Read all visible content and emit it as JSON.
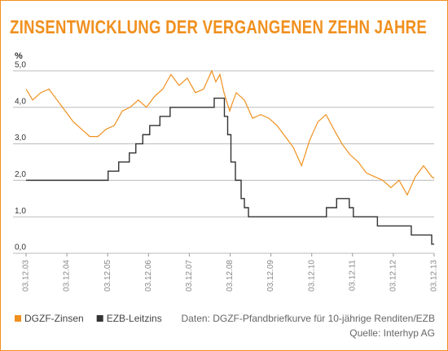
{
  "chart_data": {
    "type": "line",
    "title": "ZINSENTWICKLUNG DER VERGANGENEN ZEHN JAHRE",
    "y_label": "%",
    "source": [
      "Daten: DGZF-Pfandbriefkurve für 10-jährige Renditen/EZB",
      "Quelle: Interhyp AG"
    ],
    "xlim": [
      2003.92,
      2013.92
    ],
    "xticks": [
      {
        "value": 2003.92,
        "label": "03.12.03"
      },
      {
        "value": 2004.92,
        "label": "03.12.04"
      },
      {
        "value": 2005.92,
        "label": "03.12.05"
      },
      {
        "value": 2006.92,
        "label": "03.12.06"
      },
      {
        "value": 2007.92,
        "label": "03.12.07"
      },
      {
        "value": 2008.92,
        "label": "03.12.08"
      },
      {
        "value": 2009.92,
        "label": "03.12.09"
      },
      {
        "value": 2010.92,
        "label": "03.12.10"
      },
      {
        "value": 2011.92,
        "label": "03.12.11"
      },
      {
        "value": 2012.92,
        "label": "03.12.12"
      },
      {
        "value": 2013.92,
        "label": "03.12.13"
      }
    ],
    "ylim": [
      0,
      5.2
    ],
    "yticks": [
      {
        "value": 0,
        "label": "0,0"
      },
      {
        "value": 1,
        "label": "1,0"
      },
      {
        "value": 2,
        "label": "2,0"
      },
      {
        "value": 3,
        "label": "3,0"
      },
      {
        "value": 4,
        "label": "4,0"
      },
      {
        "value": 5,
        "label": "5,0"
      }
    ],
    "grid": true,
    "legend": "bottom-left",
    "series": [
      {
        "name": "DGZF-Zinsen",
        "color": "#f0901e",
        "step": false,
        "x": [
          2003.92,
          2004.08,
          2004.28,
          2004.48,
          2004.68,
          2004.88,
          2005.08,
          2005.28,
          2005.48,
          2005.68,
          2005.88,
          2006.08,
          2006.28,
          2006.47,
          2006.67,
          2006.87,
          2007.07,
          2007.27,
          2007.47,
          2007.67,
          2007.87,
          2008.07,
          2008.27,
          2008.47,
          2008.57,
          2008.67,
          2008.77,
          2008.91,
          2008.97,
          2009.07,
          2009.27,
          2009.47,
          2009.67,
          2009.87,
          2010.07,
          2010.27,
          2010.47,
          2010.67,
          2010.87,
          2011.07,
          2011.27,
          2011.46,
          2011.66,
          2011.86,
          2012.06,
          2012.26,
          2012.46,
          2012.66,
          2012.86,
          2013.06,
          2013.26,
          2013.46,
          2013.66,
          2013.86,
          2013.92
        ],
        "values": [
          4.5,
          4.2,
          4.4,
          4.5,
          4.2,
          3.9,
          3.6,
          3.4,
          3.2,
          3.2,
          3.4,
          3.5,
          3.9,
          4.0,
          4.2,
          4.0,
          4.3,
          4.5,
          4.9,
          4.6,
          4.8,
          4.4,
          4.5,
          5.0,
          4.7,
          4.9,
          4.4,
          3.9,
          4.1,
          4.4,
          4.2,
          3.7,
          3.8,
          3.7,
          3.5,
          3.2,
          2.9,
          2.4,
          3.1,
          3.6,
          3.8,
          3.4,
          3.0,
          2.7,
          2.5,
          2.2,
          2.1,
          2.0,
          1.8,
          2.0,
          1.6,
          2.1,
          2.4,
          2.1,
          2.05
        ]
      },
      {
        "name": "EZB-Leitzins",
        "color": "#333333",
        "step": true,
        "x": [
          2003.92,
          2005.93,
          2006.19,
          2006.45,
          2006.61,
          2006.78,
          2006.95,
          2007.2,
          2007.45,
          2008.53,
          2008.78,
          2008.86,
          2008.94,
          2009.05,
          2009.19,
          2009.27,
          2009.37,
          2011.28,
          2011.53,
          2011.84,
          2011.94,
          2012.53,
          2013.36,
          2013.86
        ],
        "values": [
          2.0,
          2.25,
          2.5,
          2.75,
          3.0,
          3.25,
          3.5,
          3.75,
          4.0,
          4.25,
          3.75,
          3.25,
          2.5,
          2.0,
          1.5,
          1.25,
          1.0,
          1.25,
          1.5,
          1.25,
          1.0,
          0.75,
          0.5,
          0.25
        ]
      }
    ]
  }
}
